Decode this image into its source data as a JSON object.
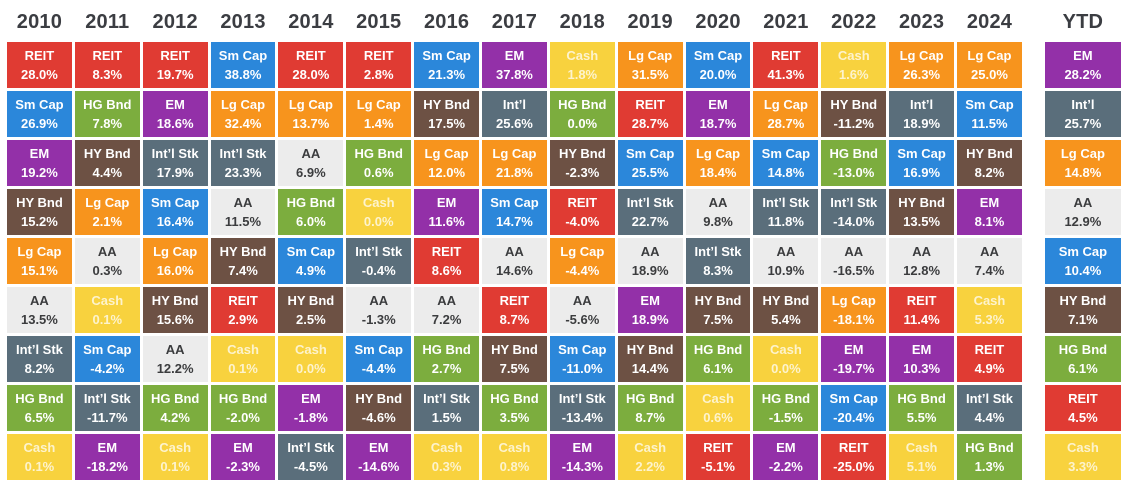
{
  "chart_data": {
    "type": "table",
    "title": "",
    "ytd_label": "YTD",
    "asset_colors": {
      "REIT": {
        "bg": "#e03b33",
        "fg": "#ffffff"
      },
      "Sm Cap": {
        "bg": "#2b87da",
        "fg": "#ffffff"
      },
      "EM": {
        "bg": "#9330a8",
        "fg": "#ffffff"
      },
      "HY Bnd": {
        "bg": "#6d5144",
        "fg": "#ffffff"
      },
      "Lg Cap": {
        "bg": "#f7941d",
        "fg": "#ffffff"
      },
      "Int’l Stk": {
        "bg": "#5a6e7b",
        "fg": "#ffffff"
      },
      "Int’l": {
        "bg": "#5a6e7b",
        "fg": "#ffffff"
      },
      "HG Bnd": {
        "bg": "#7cad3e",
        "fg": "#ffffff"
      },
      "AA": {
        "bg": "#ececec",
        "fg": "#3b3c3e"
      },
      "Cash": {
        "bg": "#f8d23e",
        "fg": "#fdf3cd"
      }
    },
    "columns": [
      {
        "header": "2010",
        "cells": [
          {
            "label": "REIT",
            "value": "28.0%"
          },
          {
            "label": "Sm Cap",
            "value": "26.9%"
          },
          {
            "label": "EM",
            "value": "19.2%"
          },
          {
            "label": "HY Bnd",
            "value": "15.2%"
          },
          {
            "label": "Lg Cap",
            "value": "15.1%"
          },
          {
            "label": "AA",
            "value": "13.5%"
          },
          {
            "label": "Int’l Stk",
            "value": "8.2%"
          },
          {
            "label": "HG Bnd",
            "value": "6.5%"
          },
          {
            "label": "Cash",
            "value": "0.1%"
          }
        ]
      },
      {
        "header": "2011",
        "cells": [
          {
            "label": "REIT",
            "value": "8.3%"
          },
          {
            "label": "HG Bnd",
            "value": "7.8%"
          },
          {
            "label": "HY Bnd",
            "value": "4.4%"
          },
          {
            "label": "Lg Cap",
            "value": "2.1%"
          },
          {
            "label": "AA",
            "value": "0.3%"
          },
          {
            "label": "Cash",
            "value": "0.1%"
          },
          {
            "label": "Sm Cap",
            "value": "-4.2%"
          },
          {
            "label": "Int’l Stk",
            "value": "-11.7%"
          },
          {
            "label": "EM",
            "value": "-18.2%"
          }
        ]
      },
      {
        "header": "2012",
        "cells": [
          {
            "label": "REIT",
            "value": "19.7%"
          },
          {
            "label": "EM",
            "value": "18.6%"
          },
          {
            "label": "Int’l Stk",
            "value": "17.9%"
          },
          {
            "label": "Sm Cap",
            "value": "16.4%"
          },
          {
            "label": "Lg Cap",
            "value": "16.0%"
          },
          {
            "label": "HY Bnd",
            "value": "15.6%"
          },
          {
            "label": "AA",
            "value": "12.2%"
          },
          {
            "label": "HG Bnd",
            "value": "4.2%"
          },
          {
            "label": "Cash",
            "value": "0.1%"
          }
        ]
      },
      {
        "header": "2013",
        "cells": [
          {
            "label": "Sm Cap",
            "value": "38.8%"
          },
          {
            "label": "Lg Cap",
            "value": "32.4%"
          },
          {
            "label": "Int’l Stk",
            "value": "23.3%"
          },
          {
            "label": "AA",
            "value": "11.5%"
          },
          {
            "label": "HY Bnd",
            "value": "7.4%"
          },
          {
            "label": "REIT",
            "value": "2.9%"
          },
          {
            "label": "Cash",
            "value": "0.1%"
          },
          {
            "label": "HG Bnd",
            "value": "-2.0%"
          },
          {
            "label": "EM",
            "value": "-2.3%"
          }
        ]
      },
      {
        "header": "2014",
        "cells": [
          {
            "label": "REIT",
            "value": "28.0%"
          },
          {
            "label": "Lg Cap",
            "value": "13.7%"
          },
          {
            "label": "AA",
            "value": "6.9%"
          },
          {
            "label": "HG Bnd",
            "value": "6.0%"
          },
          {
            "label": "Sm Cap",
            "value": "4.9%"
          },
          {
            "label": "HY Bnd",
            "value": "2.5%"
          },
          {
            "label": "Cash",
            "value": "0.0%"
          },
          {
            "label": "EM",
            "value": "-1.8%"
          },
          {
            "label": "Int’l Stk",
            "value": "-4.5%"
          }
        ]
      },
      {
        "header": "2015",
        "cells": [
          {
            "label": "REIT",
            "value": "2.8%"
          },
          {
            "label": "Lg Cap",
            "value": "1.4%"
          },
          {
            "label": "HG Bnd",
            "value": "0.6%"
          },
          {
            "label": "Cash",
            "value": "0.0%"
          },
          {
            "label": "Int’l Stk",
            "value": "-0.4%"
          },
          {
            "label": "AA",
            "value": "-1.3%"
          },
          {
            "label": "Sm Cap",
            "value": "-4.4%"
          },
          {
            "label": "HY Bnd",
            "value": "-4.6%"
          },
          {
            "label": "EM",
            "value": "-14.6%"
          }
        ]
      },
      {
        "header": "2016",
        "cells": [
          {
            "label": "Sm Cap",
            "value": "21.3%"
          },
          {
            "label": "HY Bnd",
            "value": "17.5%"
          },
          {
            "label": "Lg Cap",
            "value": "12.0%"
          },
          {
            "label": "EM",
            "value": "11.6%"
          },
          {
            "label": "REIT",
            "value": "8.6%"
          },
          {
            "label": "AA",
            "value": "7.2%"
          },
          {
            "label": "HG Bnd",
            "value": "2.7%"
          },
          {
            "label": "Int’l Stk",
            "value": "1.5%"
          },
          {
            "label": "Cash",
            "value": "0.3%"
          }
        ]
      },
      {
        "header": "2017",
        "cells": [
          {
            "label": "EM",
            "value": "37.8%"
          },
          {
            "label": "Int’l",
            "value": "25.6%"
          },
          {
            "label": "Lg Cap",
            "value": "21.8%"
          },
          {
            "label": "Sm Cap",
            "value": "14.7%"
          },
          {
            "label": "AA",
            "value": "14.6%"
          },
          {
            "label": "REIT",
            "value": "8.7%"
          },
          {
            "label": "HY Bnd",
            "value": "7.5%"
          },
          {
            "label": "HG Bnd",
            "value": "3.5%"
          },
          {
            "label": "Cash",
            "value": "0.8%"
          }
        ]
      },
      {
        "header": "2018",
        "cells": [
          {
            "label": "Cash",
            "value": "1.8%"
          },
          {
            "label": "HG Bnd",
            "value": "0.0%"
          },
          {
            "label": "HY Bnd",
            "value": "-2.3%"
          },
          {
            "label": "REIT",
            "value": "-4.0%"
          },
          {
            "label": "Lg Cap",
            "value": "-4.4%"
          },
          {
            "label": "AA",
            "value": "-5.6%"
          },
          {
            "label": "Sm Cap",
            "value": "-11.0%"
          },
          {
            "label": "Int’l Stk",
            "value": "-13.4%"
          },
          {
            "label": "EM",
            "value": "-14.3%"
          }
        ]
      },
      {
        "header": "2019",
        "cells": [
          {
            "label": "Lg Cap",
            "value": "31.5%"
          },
          {
            "label": "REIT",
            "value": "28.7%"
          },
          {
            "label": "Sm Cap",
            "value": "25.5%"
          },
          {
            "label": "Int’l Stk",
            "value": "22.7%"
          },
          {
            "label": "AA",
            "value": "18.9%"
          },
          {
            "label": "EM",
            "value": "18.9%"
          },
          {
            "label": "HY Bnd",
            "value": "14.4%"
          },
          {
            "label": "HG Bnd",
            "value": "8.7%"
          },
          {
            "label": "Cash",
            "value": "2.2%"
          }
        ]
      },
      {
        "header": "2020",
        "cells": [
          {
            "label": "Sm Cap",
            "value": "20.0%"
          },
          {
            "label": "EM",
            "value": "18.7%"
          },
          {
            "label": "Lg Cap",
            "value": "18.4%"
          },
          {
            "label": "AA",
            "value": "9.8%"
          },
          {
            "label": "Int’l Stk",
            "value": "8.3%"
          },
          {
            "label": "HY Bnd",
            "value": "7.5%"
          },
          {
            "label": "HG Bnd",
            "value": "6.1%"
          },
          {
            "label": "Cash",
            "value": "0.6%"
          },
          {
            "label": "REIT",
            "value": "-5.1%"
          }
        ]
      },
      {
        "header": "2021",
        "cells": [
          {
            "label": "REIT",
            "value": "41.3%"
          },
          {
            "label": "Lg Cap",
            "value": "28.7%"
          },
          {
            "label": "Sm Cap",
            "value": "14.8%"
          },
          {
            "label": "Int’l Stk",
            "value": "11.8%"
          },
          {
            "label": "AA",
            "value": "10.9%"
          },
          {
            "label": "HY Bnd",
            "value": "5.4%"
          },
          {
            "label": "Cash",
            "value": "0.0%"
          },
          {
            "label": "HG Bnd",
            "value": "-1.5%"
          },
          {
            "label": "EM",
            "value": "-2.2%"
          }
        ]
      },
      {
        "header": "2022",
        "cells": [
          {
            "label": "Cash",
            "value": "1.6%"
          },
          {
            "label": "HY Bnd",
            "value": "-11.2%"
          },
          {
            "label": "HG Bnd",
            "value": "-13.0%"
          },
          {
            "label": "Int’l Stk",
            "value": "-14.0%"
          },
          {
            "label": "AA",
            "value": "-16.5%"
          },
          {
            "label": "Lg Cap",
            "value": "-18.1%"
          },
          {
            "label": "EM",
            "value": "-19.7%"
          },
          {
            "label": "Sm Cap",
            "value": "-20.4%"
          },
          {
            "label": "REIT",
            "value": "-25.0%"
          }
        ]
      },
      {
        "header": "2023",
        "cells": [
          {
            "label": "Lg Cap",
            "value": "26.3%"
          },
          {
            "label": "Int’l",
            "value": "18.9%"
          },
          {
            "label": "Sm Cap",
            "value": "16.9%"
          },
          {
            "label": "HY Bnd",
            "value": "13.5%"
          },
          {
            "label": "AA",
            "value": "12.8%"
          },
          {
            "label": "REIT",
            "value": "11.4%"
          },
          {
            "label": "EM",
            "value": "10.3%"
          },
          {
            "label": "HG Bnd",
            "value": "5.5%"
          },
          {
            "label": "Cash",
            "value": "5.1%"
          }
        ]
      },
      {
        "header": "2024",
        "cells": [
          {
            "label": "Lg Cap",
            "value": "25.0%"
          },
          {
            "label": "Sm Cap",
            "value": "11.5%"
          },
          {
            "label": "HY Bnd",
            "value": "8.2%"
          },
          {
            "label": "EM",
            "value": "8.1%"
          },
          {
            "label": "AA",
            "value": "7.4%"
          },
          {
            "label": "Cash",
            "value": "5.3%"
          },
          {
            "label": "REIT",
            "value": "4.9%"
          },
          {
            "label": "Int’l Stk",
            "value": "4.4%"
          },
          {
            "label": "HG Bnd",
            "value": "1.3%"
          }
        ]
      },
      {
        "header": "YTD",
        "cells": [
          {
            "label": "EM",
            "value": "28.2%"
          },
          {
            "label": "Int’l",
            "value": "25.7%"
          },
          {
            "label": "Lg Cap",
            "value": "14.8%"
          },
          {
            "label": "AA",
            "value": "12.9%"
          },
          {
            "label": "Sm Cap",
            "value": "10.4%"
          },
          {
            "label": "HY Bnd",
            "value": "7.1%"
          },
          {
            "label": "HG Bnd",
            "value": "6.1%"
          },
          {
            "label": "REIT",
            "value": "4.5%"
          },
          {
            "label": "Cash",
            "value": "3.3%"
          }
        ]
      }
    ]
  }
}
